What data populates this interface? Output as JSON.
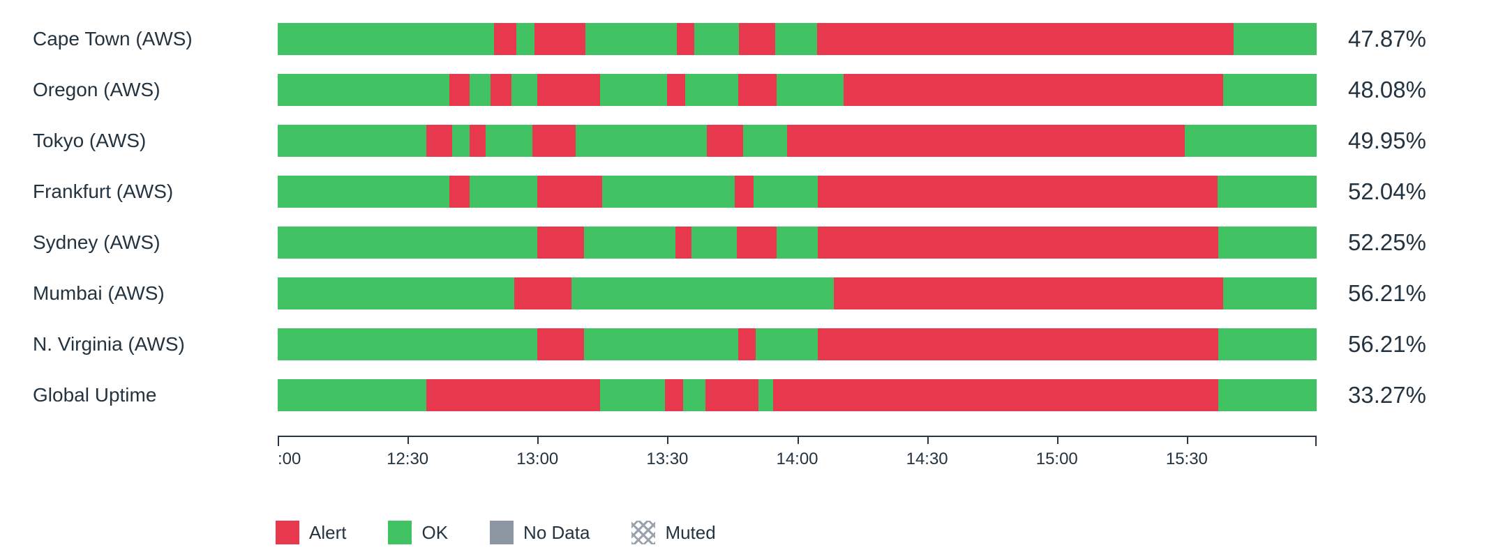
{
  "colors": {
    "ok": "#41c363",
    "alert": "#e8384e",
    "no_data": "#8c96a3",
    "muted_line": "#9aa2ae",
    "text": "#243340",
    "axis": "#2a3540"
  },
  "chart_data": {
    "type": "bar",
    "subtype": "status-timeline",
    "orientation": "horizontal",
    "time_start": "12:00",
    "time_end": "16:00",
    "x_ticks": [
      ":00",
      "12:30",
      "13:00",
      "13:30",
      "14:00",
      "14:30",
      "15:00",
      "15:30"
    ],
    "tick_interval_minutes": 30,
    "grid": false,
    "legend_position": "bottom",
    "categories": [
      "Cape Town (AWS)",
      "Oregon (AWS)",
      "Tokyo (AWS)",
      "Frankfurt (AWS)",
      "Sydney (AWS)",
      "Mumbai (AWS)",
      "N. Virginia (AWS)",
      "Global Uptime"
    ],
    "values": [
      47.87,
      48.08,
      49.95,
      52.04,
      52.25,
      56.21,
      56.21,
      33.27
    ],
    "rows": [
      {
        "label": "Cape Town (AWS)",
        "uptime": "47.87%",
        "segments": [
          [
            "ok",
            20.8
          ],
          [
            "alert",
            2.2
          ],
          [
            "ok",
            1.7
          ],
          [
            "alert",
            4.9
          ],
          [
            "ok",
            8.8
          ],
          [
            "alert",
            1.7
          ],
          [
            "ok",
            4.3
          ],
          [
            "alert",
            3.5
          ],
          [
            "ok",
            4.0
          ],
          [
            "alert",
            40.1
          ],
          [
            "ok",
            8.0
          ]
        ]
      },
      {
        "label": "Oregon (AWS)",
        "uptime": "48.08%",
        "segments": [
          [
            "ok",
            16.5
          ],
          [
            "alert",
            2.0
          ],
          [
            "ok",
            2.0
          ],
          [
            "alert",
            2.0
          ],
          [
            "ok",
            2.5
          ],
          [
            "alert",
            6.0
          ],
          [
            "ok",
            6.5
          ],
          [
            "alert",
            1.7
          ],
          [
            "ok",
            5.1
          ],
          [
            "alert",
            3.7
          ],
          [
            "ok",
            6.5
          ],
          [
            "alert",
            36.5
          ],
          [
            "ok",
            9.0
          ]
        ]
      },
      {
        "label": "Tokyo (AWS)",
        "uptime": "49.95%",
        "segments": [
          [
            "ok",
            14.3
          ],
          [
            "alert",
            2.5
          ],
          [
            "ok",
            1.7
          ],
          [
            "alert",
            1.5
          ],
          [
            "ok",
            4.5
          ],
          [
            "alert",
            4.2
          ],
          [
            "ok",
            12.6
          ],
          [
            "alert",
            3.5
          ],
          [
            "ok",
            4.2
          ],
          [
            "alert",
            38.3
          ],
          [
            "ok",
            12.7
          ]
        ]
      },
      {
        "label": "Frankfurt (AWS)",
        "uptime": "52.04%",
        "segments": [
          [
            "ok",
            16.5
          ],
          [
            "alert",
            2.0
          ],
          [
            "ok",
            6.5
          ],
          [
            "alert",
            6.2
          ],
          [
            "ok",
            12.8
          ],
          [
            "alert",
            1.8
          ],
          [
            "ok",
            6.2
          ],
          [
            "alert",
            38.5
          ],
          [
            "ok",
            9.5
          ]
        ]
      },
      {
        "label": "Sydney (AWS)",
        "uptime": "52.25%",
        "segments": [
          [
            "ok",
            25.0
          ],
          [
            "alert",
            4.5
          ],
          [
            "ok",
            8.8
          ],
          [
            "alert",
            1.5
          ],
          [
            "ok",
            4.4
          ],
          [
            "alert",
            3.8
          ],
          [
            "ok",
            4.0
          ],
          [
            "alert",
            38.5
          ],
          [
            "ok",
            9.5
          ]
        ]
      },
      {
        "label": "Mumbai (AWS)",
        "uptime": "56.21%",
        "segments": [
          [
            "ok",
            22.8
          ],
          [
            "alert",
            5.5
          ],
          [
            "ok",
            25.2
          ],
          [
            "alert",
            37.5
          ],
          [
            "ok",
            9.0
          ]
        ]
      },
      {
        "label": "N. Virginia (AWS)",
        "uptime": "56.21%",
        "segments": [
          [
            "ok",
            25.0
          ],
          [
            "alert",
            4.5
          ],
          [
            "ok",
            14.8
          ],
          [
            "alert",
            1.7
          ],
          [
            "ok",
            6.0
          ],
          [
            "alert",
            38.5
          ],
          [
            "ok",
            9.5
          ]
        ]
      },
      {
        "label": "Global Uptime",
        "uptime": "33.27%",
        "segments": [
          [
            "ok",
            14.3
          ],
          [
            "alert",
            16.7
          ],
          [
            "ok",
            6.3
          ],
          [
            "alert",
            1.7
          ],
          [
            "ok",
            2.2
          ],
          [
            "alert",
            5.1
          ],
          [
            "ok",
            1.4
          ],
          [
            "alert",
            42.8
          ],
          [
            "ok",
            9.5
          ]
        ]
      }
    ],
    "legend": [
      {
        "label": "Alert",
        "swatch": "alert"
      },
      {
        "label": "OK",
        "swatch": "ok"
      },
      {
        "label": "No Data",
        "swatch": "no-data"
      },
      {
        "label": "Muted",
        "swatch": "muted"
      }
    ]
  }
}
